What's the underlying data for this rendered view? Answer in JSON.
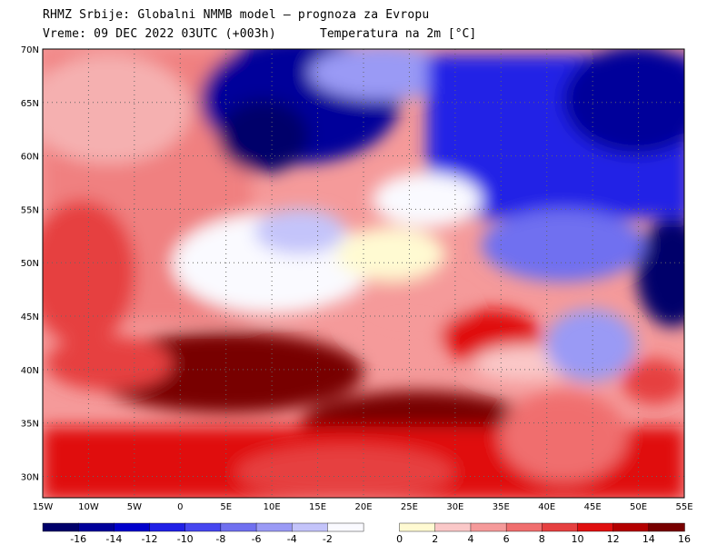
{
  "header": {
    "line1": "RHMZ Srbije: Globalni NMMB model — prognoza za Evropu",
    "line2": "Vreme: 09 DEC 2022 03UTC (+003h)",
    "field": "Temperatura na 2m [°C]"
  },
  "map": {
    "lon_range": [
      -15,
      55
    ],
    "lat_range": [
      28,
      70
    ],
    "lat_labels": [
      "70N",
      "65N",
      "60N",
      "55N",
      "50N",
      "45N",
      "40N",
      "35N",
      "30N"
    ],
    "lat_values": [
      70,
      65,
      60,
      55,
      50,
      45,
      40,
      35,
      30
    ],
    "lon_labels": [
      "15W",
      "10W",
      "5W",
      "0",
      "5E",
      "10E",
      "15E",
      "20E",
      "25E",
      "30E",
      "35E",
      "40E",
      "45E",
      "50E",
      "55E"
    ],
    "lon_values": [
      -15,
      -10,
      -5,
      0,
      5,
      10,
      15,
      20,
      25,
      30,
      35,
      40,
      45,
      50,
      55
    ]
  },
  "colorbar": {
    "labels": [
      "-16",
      "-14",
      "-12",
      "-10",
      "-8",
      "-6",
      "-4",
      "-2",
      "0",
      "2",
      "4",
      "6",
      "8",
      "10",
      "12",
      "14",
      "16"
    ],
    "colors": [
      "#00006a",
      "#00009a",
      "#0000cc",
      "#2020e6",
      "#4646f0",
      "#7070f0",
      "#9a9af5",
      "#c4c4fa",
      "#fafaff",
      "#fffad2",
      "#fac8c8",
      "#f59a9a",
      "#f06e6e",
      "#e64040",
      "#e01010",
      "#b40000",
      "#780000"
    ]
  }
}
